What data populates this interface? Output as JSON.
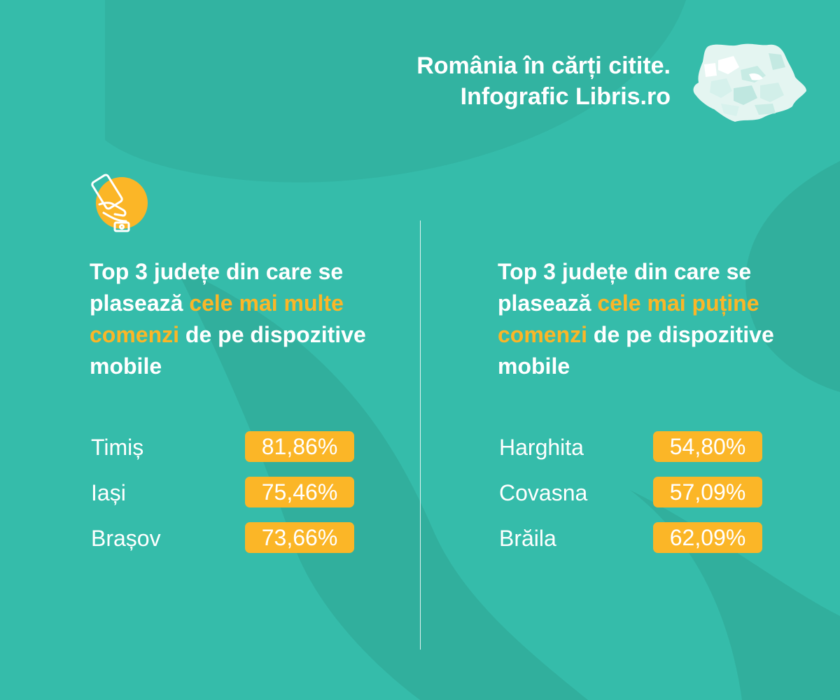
{
  "colors": {
    "background": "#35bcaa",
    "shape_dark": "#30ad9c",
    "accent": "#fbb627",
    "text": "#ffffff"
  },
  "header": {
    "line1": "România în cărți citite.",
    "line2": "Infografic Libris.ro",
    "map_icon": "romania-map-icon"
  },
  "icon": "mobile-shopping-icon",
  "left": {
    "title_pre": "Top 3 județe din care se plasează ",
    "title_highlight": "cele mai multe comenzi",
    "title_post": " de pe dispozitive mobile",
    "rows": [
      {
        "county": "Timiș",
        "value": "81,86%"
      },
      {
        "county": "Iași",
        "value": "75,46%"
      },
      {
        "county": "Brașov",
        "value": "73,66%"
      }
    ]
  },
  "right": {
    "title_pre": "Top 3 județe din care se plasează ",
    "title_highlight": "puține comenzi",
    "title_highlight_pre": "cele mai ",
    "title_post": " de pe dispozitive mobile",
    "rows": [
      {
        "county": "Harghita",
        "value": "54,80%"
      },
      {
        "county": "Covasna",
        "value": "57,09%"
      },
      {
        "county": "Brăila",
        "value": "62,09%"
      }
    ]
  }
}
